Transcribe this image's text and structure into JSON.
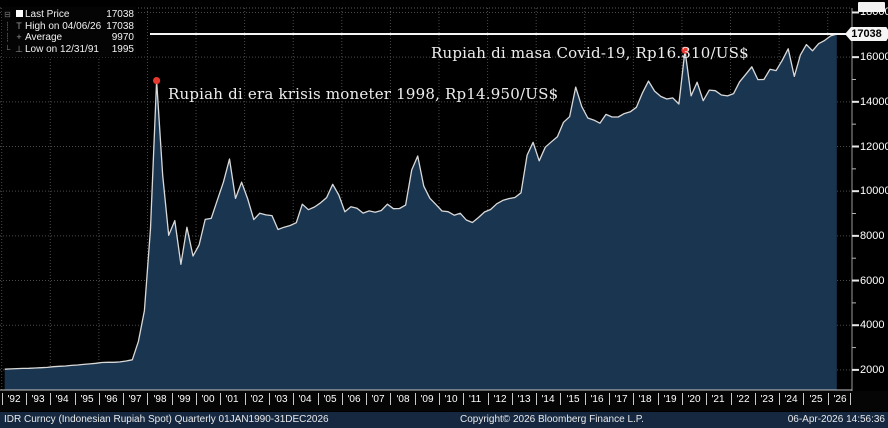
{
  "legend": {
    "rows": [
      {
        "label": "Last Price",
        "value": "17038",
        "marker": "last-price-swatch"
      },
      {
        "label": "High on 04/06/26",
        "value": "17038",
        "marker": "high-marker"
      },
      {
        "label": "Average",
        "value": "9970",
        "marker": "average-marker"
      },
      {
        "label": "Low on 12/31/91",
        "value": "1995",
        "marker": "low-marker"
      }
    ]
  },
  "annotations": {
    "crisis": "Rupiah di era krisis moneter 1998, Rp14.950/US$",
    "covid": "Rupiah di masa Covid-19, Rp16.310/US$"
  },
  "axis_callout": "17038",
  "footer": {
    "left": "IDR Curncy (Indonesian Rupiah Spot) Quarterly 01JAN1990-31DEC2026",
    "center": "Copyright© 2026 Bloomberg Finance L.P.",
    "right": "06-Apr-2026 14:56:36"
  },
  "chart_data": {
    "type": "area",
    "title": "IDR Curncy (Indonesian Rupiah Spot)",
    "frequency": "Quarterly",
    "x_start_year": 1992,
    "x_step_years": 0.25,
    "values": [
      2030,
      2045,
      2060,
      2065,
      2070,
      2085,
      2100,
      2110,
      2144,
      2160,
      2175,
      2200,
      2220,
      2245,
      2270,
      2295,
      2330,
      2340,
      2340,
      2360,
      2400,
      2450,
      3275,
      4650,
      8325,
      14950,
      10700,
      8025,
      8685,
      6725,
      8385,
      7100,
      7590,
      8735,
      8780,
      9595,
      10400,
      11440,
      9675,
      10400,
      9655,
      8730,
      9015,
      8940,
      8908,
      8285,
      8389,
      8465,
      8587,
      9415,
      9170,
      9290,
      9480,
      9713,
      10310,
      9830,
      9075,
      9300,
      9235,
      9020,
      9118,
      9054,
      9137,
      9419,
      9217,
      9225,
      9378,
      10950,
      11575,
      10225,
      9681,
      9400,
      9115,
      9083,
      8924,
      9010,
      8709,
      8597,
      8823,
      9068,
      9180,
      9433,
      9588,
      9670,
      9719,
      9929,
      11613,
      12189,
      11360,
      11969,
      12212,
      12440,
      13084,
      13332,
      14657,
      13795,
      13276,
      13180,
      13042,
      13436,
      13321,
      13319,
      13472,
      13555,
      13756,
      14404,
      14929,
      14481,
      14244,
      14126,
      14174,
      13901,
      16310,
      14265,
      14880,
      14050,
      14525,
      14500,
      14307,
      14263,
      14369,
      14898,
      15228,
      15568,
      14995,
      15000,
      15455,
      15399,
      15855,
      16375,
      15140,
      16102,
      16560,
      16285,
      16600,
      16750,
      16950,
      17038
    ],
    "x_tick_labels": [
      "'92",
      "'93",
      "'94",
      "'95",
      "'96",
      "'97",
      "'98",
      "'99",
      "'00",
      "'01",
      "'02",
      "'03",
      "'04",
      "'05",
      "'06",
      "'07",
      "'08",
      "'09",
      "'10",
      "'11",
      "'12",
      "'13",
      "'14",
      "'15",
      "'16",
      "'17",
      "'18",
      "'19",
      "'20",
      "'21",
      "'22",
      "'23",
      "'24",
      "'25",
      "'26"
    ],
    "y_ticks": [
      2000,
      4000,
      6000,
      8000,
      10000,
      12000,
      14000,
      16000,
      18000
    ],
    "y_minor_ticks": [
      3000,
      5000,
      7000,
      9000,
      11000,
      13000,
      15000,
      17000
    ],
    "ylim": [
      1100,
      18200
    ],
    "xlim": [
      1991.93,
      2027.0
    ],
    "grid": "dotted, every 2 years vertical, every 2000 horizontal",
    "last_price_line": 17038,
    "markers": [
      {
        "index": 25,
        "value": 14950,
        "note": "crisis-1998-peak"
      },
      {
        "index": 112,
        "value": 16310,
        "note": "covid-2020-peak"
      }
    ],
    "colors": {
      "fill": "#1a3550",
      "line": "#d9d9d9",
      "grid": "#4a4a4a",
      "dot": "#e8392e",
      "last_price_line": "#f5f5f5",
      "axis": "#9a9a9a",
      "footer_bg": "#152840"
    }
  }
}
